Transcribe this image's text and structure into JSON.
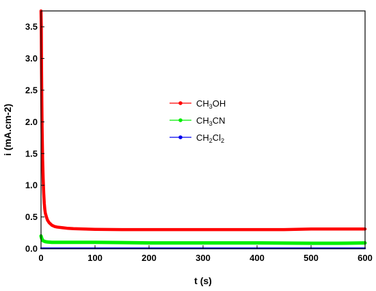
{
  "chart_data": {
    "type": "line",
    "xlabel": "t (s)",
    "ylabel": "i (mA.cm-2)",
    "xlim": [
      0,
      600
    ],
    "ylim": [
      0,
      3.75
    ],
    "x_ticks": [
      "0",
      "100",
      "200",
      "300",
      "400",
      "500",
      "600"
    ],
    "y_ticks": [
      "0.0",
      "0.5",
      "1.0",
      "1.5",
      "2.0",
      "2.5",
      "3.0",
      "3.5"
    ],
    "legend_position": "center",
    "grid": false,
    "series": [
      {
        "name": "CH3OH",
        "label_parts": [
          [
            "CH",
            ""
          ],
          [
            "3",
            "sub"
          ],
          [
            "OH",
            ""
          ]
        ],
        "color": "#ff0000",
        "x": [
          0,
          0.5,
          1,
          1.5,
          2,
          3,
          4,
          5,
          6,
          7,
          8,
          10,
          12,
          15,
          20,
          25,
          30,
          40,
          50,
          60,
          80,
          100,
          150,
          200,
          250,
          300,
          350,
          400,
          450,
          500,
          550,
          600
        ],
        "y": [
          3.75,
          3.5,
          2.8,
          2.3,
          1.9,
          1.4,
          1.1,
          0.88,
          0.72,
          0.62,
          0.56,
          0.5,
          0.45,
          0.41,
          0.37,
          0.35,
          0.34,
          0.33,
          0.32,
          0.315,
          0.31,
          0.305,
          0.3,
          0.3,
          0.3,
          0.3,
          0.3,
          0.3,
          0.3,
          0.31,
          0.31,
          0.31
        ]
      },
      {
        "name": "CH3CN",
        "label_parts": [
          [
            "CH",
            ""
          ],
          [
            "3",
            "sub"
          ],
          [
            "CN",
            ""
          ]
        ],
        "color": "#00ee00",
        "x": [
          0,
          1,
          2,
          3,
          5,
          8,
          12,
          20,
          30,
          50,
          80,
          100,
          150,
          200,
          300,
          400,
          500,
          550,
          600
        ],
        "y": [
          0.2,
          0.17,
          0.15,
          0.13,
          0.12,
          0.11,
          0.105,
          0.1,
          0.1,
          0.1,
          0.1,
          0.1,
          0.095,
          0.09,
          0.09,
          0.09,
          0.085,
          0.085,
          0.09
        ]
      },
      {
        "name": "CH2Cl2",
        "label_parts": [
          [
            "CH",
            ""
          ],
          [
            "2",
            "sub"
          ],
          [
            "Cl",
            ""
          ],
          [
            "2",
            "sub"
          ]
        ],
        "color": "#0000ee",
        "x": [
          0,
          100,
          200,
          300,
          400,
          500,
          600
        ],
        "y": [
          0.005,
          0.005,
          0.005,
          0.005,
          0.005,
          0.005,
          0.005
        ]
      }
    ]
  }
}
